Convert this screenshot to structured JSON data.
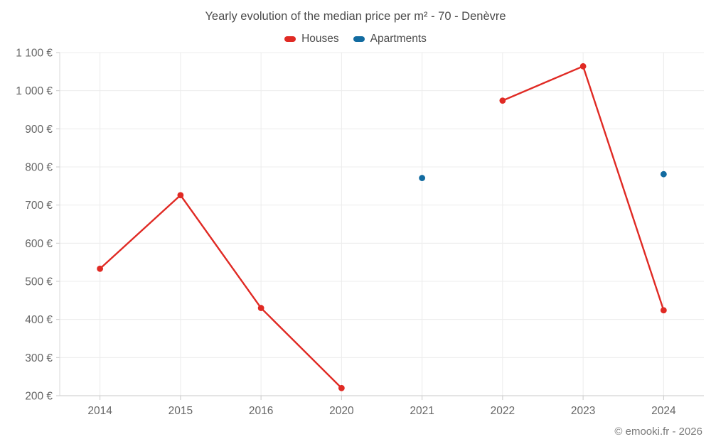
{
  "chart_data": {
    "type": "line",
    "title": "Yearly evolution of the median price per m² - 70 - Denèvre",
    "categories": [
      "2014",
      "2015",
      "2016",
      "2020",
      "2021",
      "2022",
      "2023",
      "2024"
    ],
    "series": [
      {
        "name": "Houses",
        "color": "#e02a24",
        "values": [
          533,
          726,
          430,
          220,
          null,
          974,
          1064,
          424
        ]
      },
      {
        "name": "Apartments",
        "color": "#126ba0",
        "values": [
          null,
          null,
          null,
          null,
          771,
          null,
          null,
          781
        ]
      }
    ],
    "ylim": [
      200,
      1100
    ],
    "y_tick_step": 100,
    "y_tick_suffix": " €",
    "xlabel": "",
    "ylabel": "",
    "grid": true,
    "legend_position": "top"
  },
  "footer": {
    "copyright": "© emooki.fr - 2026"
  }
}
